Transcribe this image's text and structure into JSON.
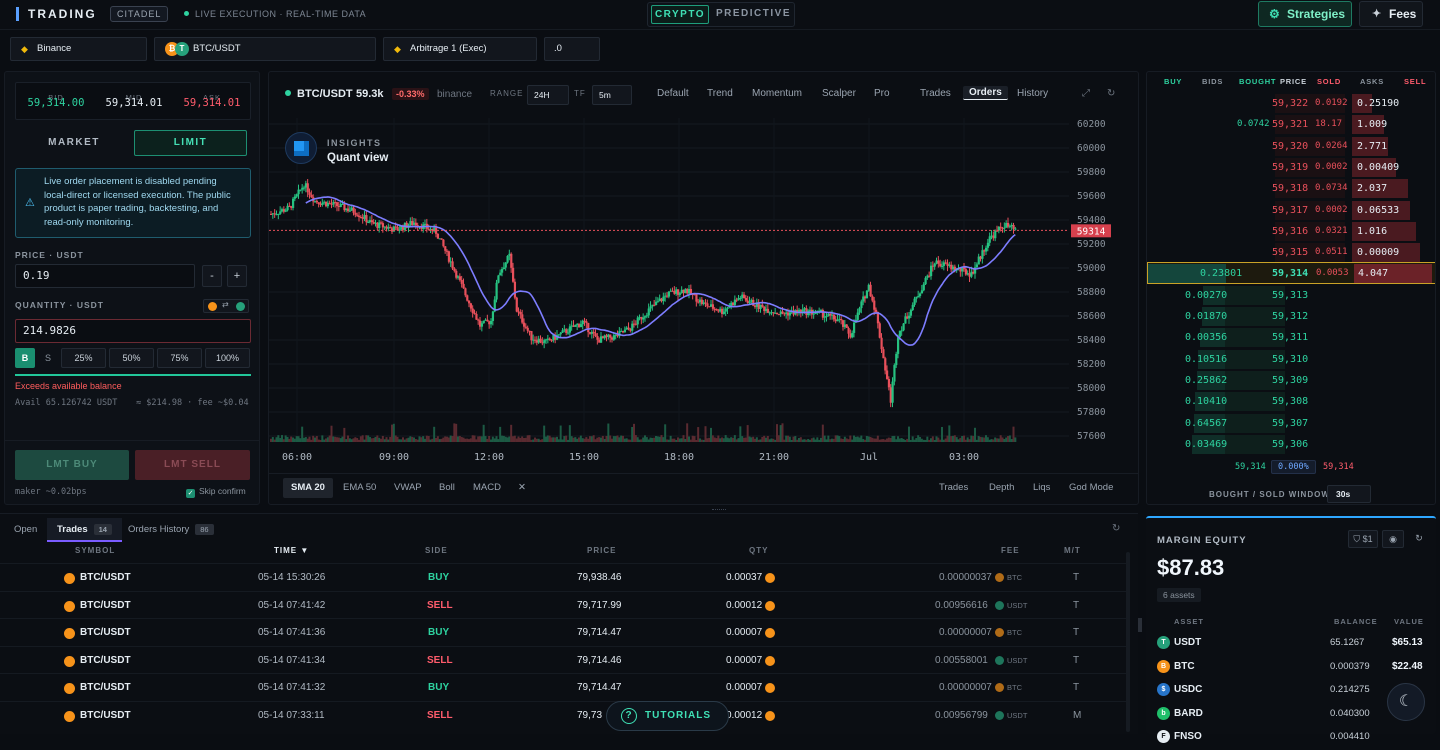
{
  "topbar": {
    "brand": "TRADING",
    "badge": "CITADEL",
    "live_text": "LIVE EXECUTION · REAL-TIME DATA",
    "mode_crypto": "CRYPTO",
    "mode_predictive": "PREDICTIVE",
    "strategies_label": "Strategies",
    "fees_label": "Fees"
  },
  "selectors": {
    "exchange": "Binance",
    "pair": "BTC/USDT",
    "strategy": "Arbitrage 1 (Exec)",
    "value": ".0"
  },
  "quote": {
    "bid_label": "BID",
    "bid": "59,314.00",
    "mid_label": "MID",
    "mid": "59,314.01",
    "ask_label": "ASK",
    "ask": "59,314.01"
  },
  "order_form": {
    "tab_market": "MARKET",
    "tab_limit": "LIMIT",
    "notice": "Live order placement is disabled pending local-direct or licensed execution. The public product is paper trading, backtesting, and read-only monitoring.",
    "price_label": "PRICE · USDT",
    "price_value": "0.19",
    "minus": "-",
    "plus": "+",
    "quantity_label": "QUANTITY · USDT",
    "quantity_value": "214.9826",
    "side_buy": "B",
    "side_sell": "S",
    "pct": [
      "25%",
      "50%",
      "75%",
      "100%"
    ],
    "error": "Exceeds available balance",
    "avail": "Avail 65.126742 USDT",
    "approx": "≈ $214.98 · fee ~$0.04",
    "buy_button": "LMT BUY",
    "sell_button": "LMT SELL",
    "maker": "maker ~0.02bps",
    "skip_confirm": "Skip confirm"
  },
  "chart_header": {
    "symbol": "BTC/USDT",
    "price": "59.3k",
    "change": "-0.33%",
    "exchange": "binance",
    "range_label": "RANGE",
    "range_value": "24H",
    "tf_label": "TF",
    "tf_value": "5m",
    "presets": [
      "Default",
      "Trend",
      "Momentum",
      "Scalper",
      "Pro"
    ],
    "views": [
      "Trades",
      "Orders",
      "History"
    ],
    "active_view": "Orders",
    "insights_title": "INSIGHTS",
    "insights_sub": "Quant view"
  },
  "chart_footer": {
    "indicators": [
      "SMA 20",
      "EMA 50",
      "VWAP",
      "Boll",
      "MACD"
    ],
    "active_indicator": "SMA 20",
    "close": "✕",
    "right": [
      "Trades",
      "Depth",
      "Liqs",
      "God Mode"
    ]
  },
  "chart_data": {
    "type": "candlestick",
    "title": "",
    "x_ticks": [
      "06:00",
      "09:00",
      "12:00",
      "15:00",
      "18:00",
      "21:00",
      "Jul",
      "03:00"
    ],
    "y_ticks": [
      60200,
      60000,
      59800,
      59600,
      59400,
      59200,
      59000,
      58800,
      58600,
      58400,
      58200,
      58000,
      57800,
      57600
    ],
    "ylim": [
      57550,
      60250
    ],
    "last_price_label": "59314",
    "last_price": 59314,
    "close_path": [
      [
        0,
        59450
      ],
      [
        10,
        59500
      ],
      [
        18,
        59700
      ],
      [
        24,
        59560
      ],
      [
        36,
        59520
      ],
      [
        46,
        59470
      ],
      [
        55,
        59370
      ],
      [
        68,
        59320
      ],
      [
        78,
        59380
      ],
      [
        90,
        59300
      ],
      [
        98,
        59050
      ],
      [
        106,
        58780
      ],
      [
        114,
        58520
      ],
      [
        120,
        58560
      ],
      [
        124,
        58950
      ],
      [
        130,
        59100
      ],
      [
        134,
        58650
      ],
      [
        142,
        58420
      ],
      [
        150,
        58380
      ],
      [
        158,
        58450
      ],
      [
        170,
        58550
      ],
      [
        178,
        58400
      ],
      [
        188,
        58430
      ],
      [
        196,
        58500
      ],
      [
        206,
        58650
      ],
      [
        216,
        58780
      ],
      [
        226,
        58820
      ],
      [
        236,
        58700
      ],
      [
        246,
        58640
      ],
      [
        256,
        58760
      ],
      [
        266,
        58680
      ],
      [
        278,
        58620
      ],
      [
        290,
        58640
      ],
      [
        300,
        58620
      ],
      [
        310,
        58560
      ],
      [
        316,
        58440
      ],
      [
        322,
        58700
      ],
      [
        326,
        58850
      ],
      [
        330,
        58620
      ],
      [
        334,
        58250
      ],
      [
        338,
        57900
      ],
      [
        342,
        58450
      ],
      [
        352,
        58750
      ],
      [
        362,
        59050
      ],
      [
        372,
        59000
      ],
      [
        382,
        58950
      ],
      [
        392,
        59250
      ],
      [
        400,
        59360
      ],
      [
        406,
        59314
      ]
    ],
    "series": [
      {
        "name": "SMA 20",
        "color": "#7d7dff"
      }
    ],
    "volume_present": true
  },
  "orderbook": {
    "headers": [
      "BUY",
      "BIDS",
      "BOUGHT",
      "PRICE",
      "SOLD",
      "ASKS",
      "SELL"
    ],
    "asks": [
      {
        "price": "59,322",
        "sold": "0.0192",
        "ask": "0.25190",
        "depth": 0.25
      },
      {
        "price": "59,321",
        "bought": "0.0742",
        "sold": "18.17",
        "ask": "1.009",
        "depth": 0.4
      },
      {
        "price": "59,320",
        "sold": "0.0264",
        "ask": "2.771",
        "depth": 0.45
      },
      {
        "price": "59,319",
        "sold": "0.0002",
        "ask": "0.00409",
        "depth": 0.55
      },
      {
        "price": "59,318",
        "sold": "0.0734",
        "ask": "2.037",
        "depth": 0.7
      },
      {
        "price": "59,317",
        "sold": "0.0002",
        "ask": "0.06533",
        "depth": 0.72
      },
      {
        "price": "59,316",
        "sold": "0.0321",
        "ask": "1.016",
        "depth": 0.8
      },
      {
        "price": "59,315",
        "sold": "0.0511",
        "ask": "0.00009",
        "depth": 0.85
      }
    ],
    "mid": {
      "bid": "0.23801",
      "price": "59,314",
      "sold": "0.0053",
      "ask": "4.047"
    },
    "bids": [
      {
        "bid": "0.00270",
        "price": "59,313",
        "depth": 0.28
      },
      {
        "bid": "0.01870",
        "price": "59,312",
        "depth": 0.3
      },
      {
        "bid": "0.00356",
        "price": "59,311",
        "depth": 0.32
      },
      {
        "bid": "0.10516",
        "price": "59,310",
        "depth": 0.34
      },
      {
        "bid": "0.25862",
        "price": "59,309",
        "depth": 0.36
      },
      {
        "bid": "0.10410",
        "price": "59,308",
        "depth": 0.38
      },
      {
        "bid": "0.64567",
        "price": "59,307",
        "depth": 0.4
      },
      {
        "bid": "0.03469",
        "price": "59,306",
        "depth": 0.42
      }
    ],
    "footer_left": "59,314",
    "footer_mid": "0.000%",
    "footer_right": "59,314",
    "window_label": "BOUGHT / SOLD WINDOW",
    "window_value": "30s"
  },
  "trades": {
    "tabs": [
      {
        "label": "Open",
        "count": ""
      },
      {
        "label": "Trades",
        "count": "14"
      },
      {
        "label": "Orders History",
        "count": "86"
      }
    ],
    "active_tab": "Trades",
    "headers": [
      "SYMBOL",
      "TIME ▼",
      "SIDE",
      "PRICE",
      "QTY",
      "FEE",
      "M/T"
    ],
    "rows": [
      {
        "symbol": "BTC/USDT",
        "time": "05-14 15:30:26",
        "side": "BUY",
        "price": "79,938.46",
        "qty": "0.00037",
        "fee": "0.00000037",
        "fee_asset": "BTC",
        "mt": "T"
      },
      {
        "symbol": "BTC/USDT",
        "time": "05-14 07:41:42",
        "side": "SELL",
        "price": "79,717.99",
        "qty": "0.00012",
        "fee": "0.00956616",
        "fee_asset": "USDT",
        "mt": "T"
      },
      {
        "symbol": "BTC/USDT",
        "time": "05-14 07:41:36",
        "side": "BUY",
        "price": "79,714.47",
        "qty": "0.00007",
        "fee": "0.00000007",
        "fee_asset": "BTC",
        "mt": "T"
      },
      {
        "symbol": "BTC/USDT",
        "time": "05-14 07:41:34",
        "side": "SELL",
        "price": "79,714.46",
        "qty": "0.00007",
        "fee": "0.00558001",
        "fee_asset": "USDT",
        "mt": "T"
      },
      {
        "symbol": "BTC/USDT",
        "time": "05-14 07:41:32",
        "side": "BUY",
        "price": "79,714.47",
        "qty": "0.00007",
        "fee": "0.00000007",
        "fee_asset": "BTC",
        "mt": "T"
      },
      {
        "symbol": "BTC/USDT",
        "time": "05-14 07:33:11",
        "side": "SELL",
        "price": "79,73",
        "qty": "0.00012",
        "fee": "0.00956799",
        "fee_asset": "USDT",
        "mt": "M"
      }
    ],
    "tutorials": "TUTORIALS"
  },
  "margin": {
    "title": "MARGIN EQUITY",
    "filter": "$1",
    "value": "$87.83",
    "assets": "6 assets",
    "headers": [
      "ASSET",
      "BALANCE",
      "VALUE"
    ],
    "rows": [
      {
        "asset": "USDT",
        "balance": "65.1267",
        "value": "$65.13",
        "color": "#26a17b",
        "glyph": "T"
      },
      {
        "asset": "BTC",
        "balance": "0.000379",
        "value": "$22.48",
        "color": "#f7931a",
        "glyph": "B"
      },
      {
        "asset": "USDC",
        "balance": "0.214275",
        "value": "",
        "color": "#2775ca",
        "glyph": "$"
      },
      {
        "asset": "BARD",
        "balance": "0.040300",
        "value": "",
        "color": "#1fbf6a",
        "glyph": "b"
      },
      {
        "asset": "FNSO",
        "balance": "0.004410",
        "value": "",
        "color": "#e6edf3",
        "glyph": "F"
      }
    ]
  }
}
